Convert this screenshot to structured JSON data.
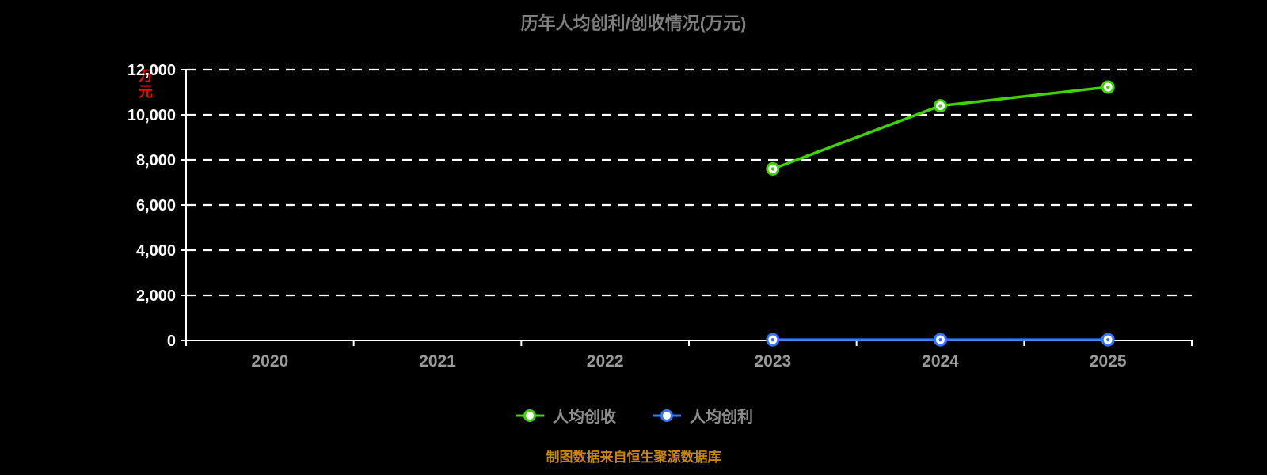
{
  "title": "历年人均创利/创收情况(万元)",
  "y_axis_unit": "万元",
  "footer": "制图数据来自恒生聚源数据库",
  "colors": {
    "background": "#000000",
    "title_text": "#7f7f7f",
    "axis": "#ffffff",
    "gridline": "#ffffff",
    "x_tick_text": "#9a9a9a",
    "y_tick_text": "#ffffff",
    "unit_text": "#ff0000",
    "footer_text": "#c8860a",
    "series_revenue": "#3fd400",
    "series_profit": "#3377ff"
  },
  "legend": [
    {
      "label": "人均创收",
      "color": "#3fd400"
    },
    {
      "label": "人均创利",
      "color": "#3377ff"
    }
  ],
  "chart_data": {
    "type": "line",
    "title": "历年人均创利/创收情况(万元)",
    "xlabel": "",
    "ylabel": "万元",
    "x": [
      2020,
      2021,
      2022,
      2023,
      2024,
      2025
    ],
    "x_tick_labels": [
      "2020",
      "2021",
      "2022",
      "2023",
      "2024",
      "2025"
    ],
    "y_ticks": [
      0,
      2000,
      4000,
      6000,
      8000,
      10000,
      12000
    ],
    "y_tick_labels": [
      "0",
      "2,000",
      "4,000",
      "6,000",
      "8,000",
      "10,000",
      "12,000"
    ],
    "ylim": [
      0,
      12000
    ],
    "grid": "horizontal-dashed",
    "legend_position": "bottom",
    "series": [
      {
        "name": "人均创收",
        "color": "#3fd400",
        "points": [
          {
            "x": 2023,
            "y": 7600
          },
          {
            "x": 2024,
            "y": 10400
          },
          {
            "x": 2025,
            "y": 11230
          }
        ]
      },
      {
        "name": "人均创利",
        "color": "#3377ff",
        "points": [
          {
            "x": 2023,
            "y": 30
          },
          {
            "x": 2024,
            "y": 30
          },
          {
            "x": 2025,
            "y": 30
          }
        ]
      }
    ]
  }
}
